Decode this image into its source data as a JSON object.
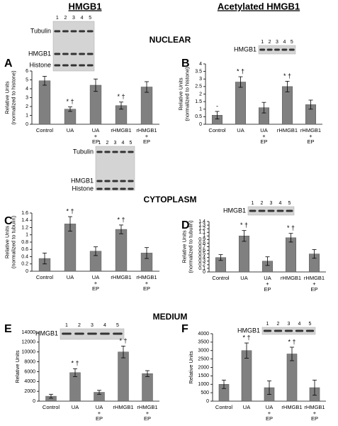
{
  "headers": [
    "HMGB1",
    "Acetylated HMGB1"
  ],
  "sections": [
    "NUCLEAR",
    "CYTOPLASM",
    "MEDIUM"
  ],
  "chart_data": [
    {
      "type": "bar",
      "panel": "A",
      "y_label": [
        "Relative Units",
        "(normalized to histone)"
      ],
      "categories": [
        [
          "Control"
        ],
        [
          "UA"
        ],
        [
          "UA",
          "+",
          "EP"
        ],
        [
          "rHMGB1"
        ],
        [
          "rHMGB1",
          "+",
          "EP"
        ]
      ],
      "values": [
        4.9,
        1.7,
        4.4,
        2.1,
        4.2
      ],
      "errors": [
        0.5,
        0.25,
        0.7,
        0.4,
        0.6
      ],
      "annotations": [
        null,
        "* †",
        null,
        "* †",
        null
      ],
      "color": "#808080",
      "ylim": [
        0,
        6
      ],
      "yticks": [
        0,
        1,
        2,
        3,
        4,
        5,
        6
      ],
      "blot": {
        "labels": [
          "Tubulin",
          "HMGB1",
          "Histone"
        ],
        "lanes": [
          "1",
          "2",
          "3",
          "4",
          "5"
        ]
      }
    },
    {
      "type": "bar",
      "panel": "B",
      "y_label": [
        "Relative Units",
        "(normalized to histone)"
      ],
      "categories": [
        [
          "Control"
        ],
        [
          "UA"
        ],
        [
          "UA",
          "+",
          "EP"
        ],
        [
          "rHMGB1"
        ],
        [
          "rHMGB1",
          "+",
          "EP"
        ]
      ],
      "values": [
        0.6,
        2.8,
        1.1,
        2.5,
        1.3
      ],
      "errors": [
        0.25,
        0.35,
        0.35,
        0.35,
        0.3
      ],
      "annotations": [
        "-",
        "* †",
        null,
        "* †",
        null
      ],
      "color": "#808080",
      "ylim": [
        0,
        4
      ],
      "yticks": [
        0,
        0.5,
        1,
        1.5,
        2,
        2.5,
        3,
        3.5,
        4
      ],
      "blot": {
        "labels": [
          "HMGB1"
        ],
        "lanes": [
          "1",
          "2",
          "3",
          "4",
          "5"
        ]
      }
    },
    {
      "type": "bar",
      "panel": "C",
      "y_label": [
        "Relative Units",
        "(normalized to tubulin)"
      ],
      "categories": [
        [
          "Control"
        ],
        [
          "UA"
        ],
        [
          "UA",
          "+",
          "EP"
        ],
        [
          "rHMGB1"
        ],
        [
          "rHMGB1",
          "+",
          "EP"
        ]
      ],
      "values": [
        0.35,
        1.3,
        0.55,
        1.15,
        0.5
      ],
      "errors": [
        0.15,
        0.2,
        0.12,
        0.12,
        0.15
      ],
      "annotations": [
        null,
        "* †",
        null,
        "* †",
        null
      ],
      "color": "#808080",
      "ylim": [
        0,
        1.6
      ],
      "yticks": [
        0,
        0.2,
        0.4,
        0.6,
        0.8,
        1,
        1.2,
        1.4,
        1.6
      ],
      "blot": {
        "labels": [
          "Tubulin",
          "HMGB1",
          "Histone"
        ],
        "lanes": [
          "1",
          "2",
          "3",
          "4",
          "5"
        ]
      }
    },
    {
      "type": "bar",
      "panel": "D",
      "y_label": [
        "Relative Units",
        "(normalized to tubulin)"
      ],
      "categories": [
        [
          "Control"
        ],
        [
          "UA"
        ],
        [
          "UA",
          "+",
          "EP"
        ],
        [
          "rHMGB1"
        ],
        [
          "rHMGB1",
          "+",
          "EP"
        ]
      ],
      "values": [
        0.4,
        1.0,
        0.3,
        0.95,
        0.5
      ],
      "errors": [
        0.08,
        0.15,
        0.12,
        0.12,
        0.12
      ],
      "annotations": [
        null,
        "* †",
        null,
        "* †",
        null
      ],
      "color": "#808080",
      "ylim": [
        0,
        1.4
      ],
      "yticks": [
        0,
        0.1,
        0.2,
        0.3,
        0.4,
        0.5,
        0.6,
        0.7,
        0.8,
        0.9,
        1,
        1.1,
        1.2,
        1.3,
        1.4
      ],
      "blot": {
        "labels": [
          "HMGB1"
        ],
        "lanes": [
          "1",
          "2",
          "3",
          "4",
          "5"
        ]
      }
    },
    {
      "type": "bar",
      "panel": "E",
      "y_label": [
        "Relative Units"
      ],
      "categories": [
        [
          "Control"
        ],
        [
          "UA"
        ],
        [
          "UA",
          "+",
          "EP"
        ],
        [
          "rHMGB1"
        ],
        [
          "rHMGB1",
          "+",
          "EP"
        ]
      ],
      "values": [
        1000,
        5800,
        1800,
        10000,
        5600
      ],
      "errors": [
        400,
        800,
        400,
        1200,
        600
      ],
      "annotations": [
        null,
        "* †",
        null,
        "* †",
        null
      ],
      "color": "#808080",
      "ylim": [
        0,
        14000
      ],
      "yticks": [
        0,
        2000,
        4000,
        6000,
        8000,
        10000,
        12000,
        14000
      ],
      "blot": {
        "labels": [
          "HMGB1"
        ],
        "lanes": [
          "1",
          "2",
          "3",
          "4",
          "5"
        ]
      }
    },
    {
      "type": "bar",
      "panel": "F",
      "y_label": [
        "Relative Units"
      ],
      "categories": [
        [
          "Control"
        ],
        [
          "UA"
        ],
        [
          "UA",
          "+",
          "EP"
        ],
        [
          "rHMGB1"
        ],
        [
          "rHMGB1",
          "+",
          "EP"
        ]
      ],
      "values": [
        1000,
        3000,
        800,
        2800,
        800
      ],
      "errors": [
        250,
        450,
        400,
        400,
        450
      ],
      "annotations": [
        null,
        "* †",
        null,
        "* †",
        null
      ],
      "color": "#808080",
      "ylim": [
        0,
        4000
      ],
      "yticks": [
        0,
        500,
        1000,
        1500,
        2000,
        2500,
        3000,
        3500,
        4000
      ],
      "blot": {
        "labels": [
          "HMGB1"
        ],
        "lanes": [
          "1",
          "2",
          "3",
          "4",
          "5"
        ]
      }
    }
  ]
}
